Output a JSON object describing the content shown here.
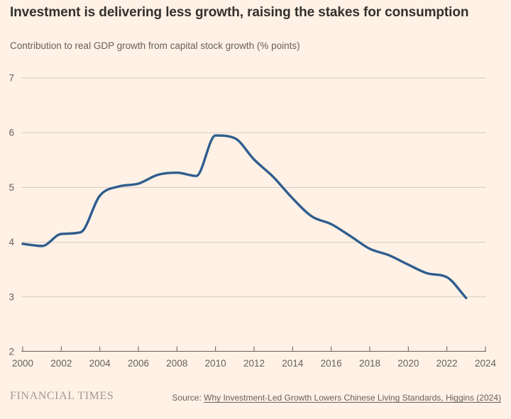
{
  "header": {
    "title": "Investment is delivering less growth, raising the stakes for consumption",
    "subtitle": "Contribution to real GDP growth from capital stock growth (% points)"
  },
  "chart_data": {
    "type": "line",
    "title": "Investment is delivering less growth, raising the stakes for consumption",
    "subtitle": "Contribution to real GDP growth from capital stock growth (% points)",
    "x": [
      2000,
      2001,
      2002,
      2003,
      2004,
      2005,
      2006,
      2007,
      2008,
      2009,
      2010,
      2011,
      2012,
      2013,
      2014,
      2015,
      2016,
      2017,
      2018,
      2019,
      2020,
      2021,
      2022,
      2023
    ],
    "series": [
      {
        "name": "Contribution to real GDP growth from capital stock growth (% points)",
        "color": "#2f5d8e",
        "values": [
          3.97,
          3.93,
          4.15,
          4.18,
          4.85,
          5.02,
          5.07,
          5.23,
          5.27,
          5.21,
          5.95,
          5.9,
          5.51,
          5.19,
          4.8,
          4.47,
          4.33,
          4.11,
          3.88,
          3.76,
          3.59,
          3.43,
          3.36,
          2.98
        ]
      }
    ],
    "xlabel": "",
    "ylabel": "% points",
    "xlim": [
      2000,
      2024
    ],
    "ylim": [
      2,
      7
    ],
    "x_ticks": [
      2000,
      2002,
      2004,
      2006,
      2008,
      2010,
      2012,
      2014,
      2016,
      2018,
      2020,
      2022,
      2024
    ],
    "y_ticks": [
      2,
      3,
      4,
      5,
      6,
      7
    ],
    "grid": "horizontal gridlines at integer values, no vertical grid",
    "legend": "none"
  },
  "footer": {
    "brand": "FINANCIAL TIMES",
    "source_prefix": "Source:",
    "source_link": "Why Investment-Led Growth Lowers Chinese Living Standards, Higgins (2024)"
  },
  "colors": {
    "background": "#fff1e5",
    "line": "#2f5d8e",
    "gridline": "#d5ccc3",
    "axis": "#66605c",
    "title_text": "#33302e",
    "secondary_text": "#66605c",
    "brand_text": "#a19a90"
  }
}
